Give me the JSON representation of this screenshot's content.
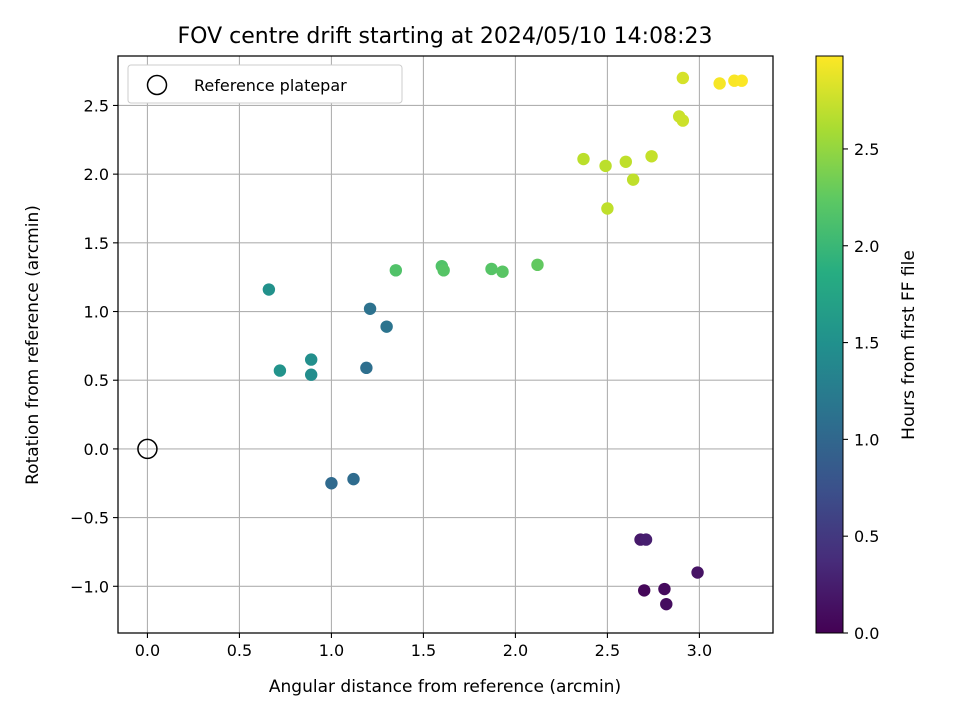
{
  "chart_data": {
    "type": "scatter",
    "title": "FOV centre drift starting at 2024/05/10 14:08:23",
    "xlabel": "Angular distance from reference (arcmin)",
    "ylabel": "Rotation from reference (arcmin)",
    "xlim": [
      -0.16,
      3.4
    ],
    "ylim": [
      -1.34,
      2.86
    ],
    "xticks": [
      0.0,
      0.5,
      1.0,
      1.5,
      2.0,
      2.5,
      3.0
    ],
    "xtick_labels": [
      "0.0",
      "0.5",
      "1.0",
      "1.5",
      "2.0",
      "2.5",
      "3.0"
    ],
    "yticks": [
      -1.0,
      -0.5,
      0.0,
      0.5,
      1.0,
      1.5,
      2.0,
      2.5
    ],
    "ytick_labels": [
      "−1.0",
      "−0.5",
      "0.0",
      "0.5",
      "1.0",
      "1.5",
      "2.0",
      "2.5"
    ],
    "grid": true,
    "legend": {
      "position": "top-left",
      "entries": [
        "Reference platepar"
      ]
    },
    "reference_point": {
      "x": 0.0,
      "y": 0.0
    },
    "colormap": "viridis",
    "colorbar": {
      "label": "Hours from first FF file",
      "range": [
        0.0,
        2.98
      ],
      "ticks": [
        0.0,
        0.5,
        1.0,
        1.5,
        2.0,
        2.5
      ],
      "tick_labels": [
        "0.0",
        "0.5",
        "1.0",
        "1.5",
        "2.0",
        "2.5"
      ]
    },
    "points": [
      {
        "x": 2.7,
        "y": -1.03,
        "hours": 0.05
      },
      {
        "x": 2.81,
        "y": -1.02,
        "hours": 0.08
      },
      {
        "x": 2.82,
        "y": -1.13,
        "hours": 0.1
      },
      {
        "x": 2.99,
        "y": -0.9,
        "hours": 0.15
      },
      {
        "x": 2.68,
        "y": -0.66,
        "hours": 0.2
      },
      {
        "x": 2.71,
        "y": -0.66,
        "hours": 0.25
      },
      {
        "x": 1.0,
        "y": -0.25,
        "hours": 1.02
      },
      {
        "x": 1.12,
        "y": -0.22,
        "hours": 1.05
      },
      {
        "x": 1.19,
        "y": 0.59,
        "hours": 1.08
      },
      {
        "x": 1.21,
        "y": 1.02,
        "hours": 1.12
      },
      {
        "x": 1.3,
        "y": 0.89,
        "hours": 1.15
      },
      {
        "x": 0.89,
        "y": 0.54,
        "hours": 1.45
      },
      {
        "x": 0.89,
        "y": 0.65,
        "hours": 1.48
      },
      {
        "x": 0.72,
        "y": 0.57,
        "hours": 1.52
      },
      {
        "x": 0.66,
        "y": 1.16,
        "hours": 1.5
      },
      {
        "x": 1.35,
        "y": 1.3,
        "hours": 2.15
      },
      {
        "x": 1.6,
        "y": 1.33,
        "hours": 2.15
      },
      {
        "x": 1.61,
        "y": 1.3,
        "hours": 2.18
      },
      {
        "x": 1.87,
        "y": 1.31,
        "hours": 2.18
      },
      {
        "x": 1.93,
        "y": 1.29,
        "hours": 2.2
      },
      {
        "x": 2.12,
        "y": 1.34,
        "hours": 2.25
      },
      {
        "x": 2.37,
        "y": 2.11,
        "hours": 2.68
      },
      {
        "x": 2.49,
        "y": 2.06,
        "hours": 2.68
      },
      {
        "x": 2.5,
        "y": 1.75,
        "hours": 2.7
      },
      {
        "x": 2.6,
        "y": 2.09,
        "hours": 2.7
      },
      {
        "x": 2.64,
        "y": 1.96,
        "hours": 2.7
      },
      {
        "x": 2.74,
        "y": 2.13,
        "hours": 2.72
      },
      {
        "x": 2.89,
        "y": 2.42,
        "hours": 2.75
      },
      {
        "x": 2.91,
        "y": 2.39,
        "hours": 2.76
      },
      {
        "x": 2.91,
        "y": 2.7,
        "hours": 2.8
      },
      {
        "x": 3.11,
        "y": 2.66,
        "hours": 2.95
      },
      {
        "x": 3.19,
        "y": 2.68,
        "hours": 2.96
      },
      {
        "x": 3.23,
        "y": 2.68,
        "hours": 2.97
      }
    ]
  }
}
